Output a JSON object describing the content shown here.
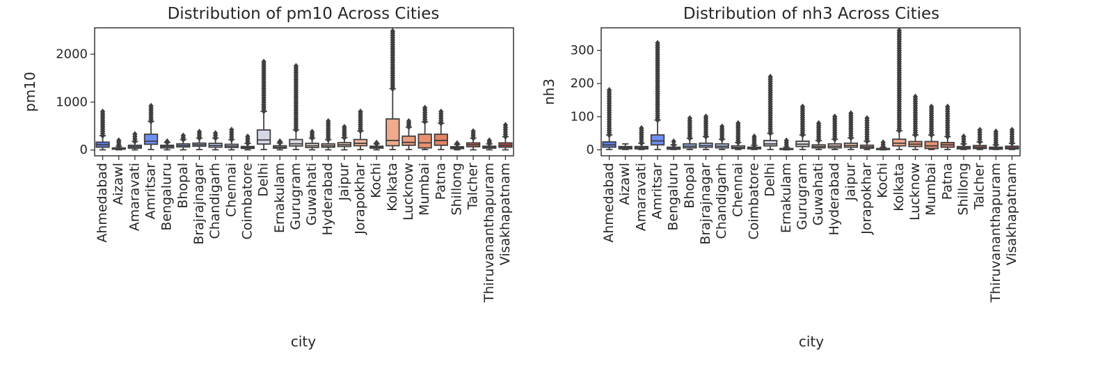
{
  "chart_data": [
    {
      "type": "boxplot",
      "title": "Distribution of pm10 Across Cities",
      "xlabel": "city",
      "ylabel": "pm10",
      "ylim": [
        -120,
        2550
      ],
      "yticks": [
        0,
        1000,
        2000
      ],
      "grid": false,
      "legend": "none",
      "categories": [
        "Ahmedabad",
        "Aizawl",
        "Amaravati",
        "Amritsar",
        "Bengaluru",
        "Bhopal",
        "Brajrajnagar",
        "Chandigarh",
        "Chennai",
        "Coimbatore",
        "Delhi",
        "Ernakulam",
        "Gurugram",
        "Guwahati",
        "Hyderabad",
        "Jaipur",
        "Jorapokhar",
        "Kochi",
        "Kolkata",
        "Lucknow",
        "Mumbai",
        "Patna",
        "Shillong",
        "Talcher",
        "Thiruvananthapuram",
        "Visakhapatnam"
      ],
      "colors": [
        "#5f7fe8",
        "#6b8df0",
        "#7b9af6",
        "#6e8ef2",
        "#90adfb",
        "#a0bbfd",
        "#b0c8fe",
        "#c0d3fc",
        "#cdd9f5",
        "#d8dce9",
        "#d4d8e6",
        "#e2dad5",
        "#d9dbe2",
        "#e7d6cc",
        "#ecccbb",
        "#f0c4ac",
        "#f4b89c",
        "#f5ae8f",
        "#f2aa8c",
        "#ee9d7d",
        "#e9916e",
        "#e18566",
        "#d9735b",
        "#d0664e",
        "#c85a48",
        "#bd4340"
      ],
      "boxes": [
        {
          "q1": 60,
          "median": 110,
          "q3": 165,
          "whislo": 5,
          "whishi": 300,
          "fliers_max": 800
        },
        {
          "q1": 18,
          "median": 30,
          "q3": 45,
          "whislo": 5,
          "whishi": 80,
          "fliers_max": 200
        },
        {
          "q1": 40,
          "median": 70,
          "q3": 100,
          "whislo": 5,
          "whishi": 180,
          "fliers_max": 330
        },
        {
          "q1": 120,
          "median": 185,
          "q3": 330,
          "whislo": 10,
          "whishi": 600,
          "fliers_max": 920
        },
        {
          "q1": 45,
          "median": 75,
          "q3": 100,
          "whislo": 5,
          "whishi": 160,
          "fliers_max": 180
        },
        {
          "q1": 65,
          "median": 95,
          "q3": 130,
          "whislo": 5,
          "whishi": 220,
          "fliers_max": 300
        },
        {
          "q1": 80,
          "median": 110,
          "q3": 145,
          "whislo": 10,
          "whishi": 250,
          "fliers_max": 380
        },
        {
          "q1": 60,
          "median": 95,
          "q3": 140,
          "whislo": 5,
          "whishi": 250,
          "fliers_max": 350
        },
        {
          "q1": 55,
          "median": 85,
          "q3": 120,
          "whislo": 5,
          "whishi": 220,
          "fliers_max": 420
        },
        {
          "q1": 35,
          "median": 55,
          "q3": 75,
          "whislo": 5,
          "whishi": 140,
          "fliers_max": 280
        },
        {
          "q1": 125,
          "median": 210,
          "q3": 420,
          "whislo": 10,
          "whishi": 810,
          "fliers_max": 1840
        },
        {
          "q1": 40,
          "median": 60,
          "q3": 90,
          "whislo": 5,
          "whishi": 150,
          "fliers_max": 180
        },
        {
          "q1": 85,
          "median": 130,
          "q3": 220,
          "whislo": 10,
          "whishi": 420,
          "fliers_max": 1750
        },
        {
          "q1": 55,
          "median": 90,
          "q3": 140,
          "whislo": 5,
          "whishi": 250,
          "fliers_max": 380
        },
        {
          "q1": 60,
          "median": 90,
          "q3": 130,
          "whislo": 5,
          "whishi": 220,
          "fliers_max": 600
        },
        {
          "q1": 75,
          "median": 110,
          "q3": 155,
          "whislo": 5,
          "whishi": 260,
          "fliers_max": 480
        },
        {
          "q1": 90,
          "median": 140,
          "q3": 220,
          "whislo": 10,
          "whishi": 400,
          "fliers_max": 800
        },
        {
          "q1": 40,
          "median": 60,
          "q3": 80,
          "whislo": 5,
          "whishi": 130,
          "fliers_max": 150
        },
        {
          "q1": 90,
          "median": 200,
          "q3": 650,
          "whislo": 10,
          "whishi": 1280,
          "fliers_max": 2480
        },
        {
          "q1": 100,
          "median": 160,
          "q3": 290,
          "whislo": 10,
          "whishi": 480,
          "fliers_max": 600
        },
        {
          "q1": 45,
          "median": 150,
          "q3": 330,
          "whislo": 10,
          "whishi": 590,
          "fliers_max": 880
        },
        {
          "q1": 100,
          "median": 200,
          "q3": 330,
          "whislo": 10,
          "whishi": 560,
          "fliers_max": 800
        },
        {
          "q1": 30,
          "median": 50,
          "q3": 70,
          "whislo": 5,
          "whishi": 120,
          "fliers_max": 140
        },
        {
          "q1": 70,
          "median": 110,
          "q3": 150,
          "whislo": 5,
          "whishi": 250,
          "fliers_max": 390
        },
        {
          "q1": 40,
          "median": 60,
          "q3": 80,
          "whislo": 5,
          "whishi": 130,
          "fliers_max": 200
        },
        {
          "q1": 60,
          "median": 100,
          "q3": 150,
          "whislo": 5,
          "whishi": 280,
          "fliers_max": 520
        }
      ]
    },
    {
      "type": "boxplot",
      "title": "Distribution of nh3 Across Cities",
      "xlabel": "city",
      "ylabel": "nh3",
      "ylim": [
        -18,
        368
      ],
      "yticks": [
        0,
        100,
        200,
        300
      ],
      "grid": false,
      "legend": "none",
      "categories": [
        "Ahmedabad",
        "Aizawl",
        "Amaravati",
        "Amritsar",
        "Bengaluru",
        "Bhopal",
        "Brajrajnagar",
        "Chandigarh",
        "Chennai",
        "Coimbatore",
        "Delhi",
        "Ernakulam",
        "Gurugram",
        "Guwahati",
        "Hyderabad",
        "Jaipur",
        "Jorapokhar",
        "Kochi",
        "Kolkata",
        "Lucknow",
        "Mumbai",
        "Patna",
        "Shillong",
        "Talcher",
        "Thiruvananthapuram",
        "Visakhapatnam"
      ],
      "colors": [
        "#5f7fe8",
        "#6b8df0",
        "#7b9af6",
        "#6e8ef2",
        "#90adfb",
        "#a0bbfd",
        "#b0c8fe",
        "#c0d3fc",
        "#cdd9f5",
        "#d8dce9",
        "#d4d8e6",
        "#e2dad5",
        "#d9dbe2",
        "#e7d6cc",
        "#ecccbb",
        "#f0c4ac",
        "#f4b89c",
        "#f5ae8f",
        "#f2aa8c",
        "#ee9d7d",
        "#e9916e",
        "#e18566",
        "#d9735b",
        "#d0664e",
        "#c85a48",
        "#bd4340"
      ],
      "boxes": [
        {
          "q1": 8,
          "median": 15,
          "q3": 24,
          "whislo": 1,
          "whishi": 45,
          "fliers_max": 180
        },
        {
          "q1": 3,
          "median": 7,
          "q3": 10,
          "whislo": 1,
          "whishi": 18,
          "fliers_max": 18
        },
        {
          "q1": 3,
          "median": 6,
          "q3": 10,
          "whislo": 1,
          "whishi": 20,
          "fliers_max": 65
        },
        {
          "q1": 15,
          "median": 27,
          "q3": 45,
          "whislo": 1,
          "whishi": 90,
          "fliers_max": 322
        },
        {
          "q1": 2,
          "median": 4,
          "q3": 8,
          "whislo": 1,
          "whishi": 15,
          "fliers_max": 25
        },
        {
          "q1": 6,
          "median": 11,
          "q3": 18,
          "whislo": 1,
          "whishi": 35,
          "fliers_max": 95
        },
        {
          "q1": 8,
          "median": 13,
          "q3": 20,
          "whislo": 1,
          "whishi": 40,
          "fliers_max": 100
        },
        {
          "q1": 6,
          "median": 11,
          "q3": 18,
          "whislo": 1,
          "whishi": 32,
          "fliers_max": 70
        },
        {
          "q1": 4,
          "median": 7,
          "q3": 12,
          "whislo": 1,
          "whishi": 22,
          "fliers_max": 80
        },
        {
          "q1": 3,
          "median": 5,
          "q3": 8,
          "whislo": 1,
          "whishi": 14,
          "fliers_max": 40
        },
        {
          "q1": 12,
          "median": 18,
          "q3": 28,
          "whislo": 1,
          "whishi": 50,
          "fliers_max": 220
        },
        {
          "q1": 1,
          "median": 2,
          "q3": 4,
          "whislo": 0,
          "whishi": 8,
          "fliers_max": 28
        },
        {
          "q1": 10,
          "median": 17,
          "q3": 26,
          "whislo": 1,
          "whishi": 45,
          "fliers_max": 130
        },
        {
          "q1": 6,
          "median": 10,
          "q3": 15,
          "whislo": 1,
          "whishi": 28,
          "fliers_max": 80
        },
        {
          "q1": 6,
          "median": 11,
          "q3": 18,
          "whislo": 1,
          "whishi": 32,
          "fliers_max": 100
        },
        {
          "q1": 8,
          "median": 13,
          "q3": 20,
          "whislo": 1,
          "whishi": 36,
          "fliers_max": 110
        },
        {
          "q1": 5,
          "median": 9,
          "q3": 14,
          "whislo": 1,
          "whishi": 26,
          "fliers_max": 95
        },
        {
          "q1": 1,
          "median": 2,
          "q3": 4,
          "whislo": 0,
          "whishi": 8,
          "fliers_max": 22
        },
        {
          "q1": 12,
          "median": 20,
          "q3": 32,
          "whislo": 1,
          "whishi": 58,
          "fliers_max": 360
        },
        {
          "q1": 10,
          "median": 17,
          "q3": 25,
          "whislo": 1,
          "whishi": 45,
          "fliers_max": 160
        },
        {
          "q1": 4,
          "median": 12,
          "q3": 25,
          "whislo": 1,
          "whishi": 45,
          "fliers_max": 130
        },
        {
          "q1": 8,
          "median": 15,
          "q3": 22,
          "whislo": 1,
          "whishi": 40,
          "fliers_max": 130
        },
        {
          "q1": 3,
          "median": 6,
          "q3": 10,
          "whislo": 1,
          "whishi": 18,
          "fliers_max": 40
        },
        {
          "q1": 4,
          "median": 8,
          "q3": 13,
          "whislo": 1,
          "whishi": 24,
          "fliers_max": 60
        },
        {
          "q1": 2,
          "median": 5,
          "q3": 8,
          "whislo": 1,
          "whishi": 15,
          "fliers_max": 55
        },
        {
          "q1": 3,
          "median": 6,
          "q3": 11,
          "whislo": 1,
          "whishi": 20,
          "fliers_max": 60
        }
      ]
    }
  ]
}
